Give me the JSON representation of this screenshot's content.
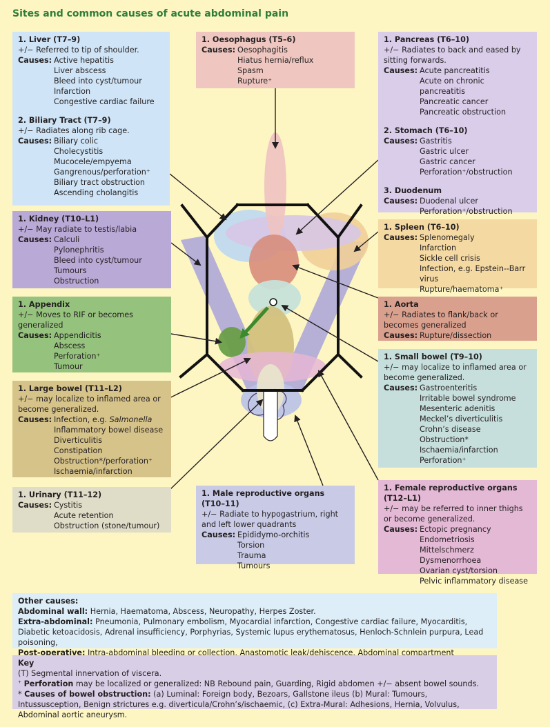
{
  "title": "Sites and common causes of acute abdominal pain",
  "causes_label": "Causes:",
  "liver": {
    "heading": "1. Liver (T7–9)",
    "note": "+/− Referred to tip of shoulder.",
    "causes": [
      "Active hepatitis",
      "Liver abscess",
      "Bleed into cyst/tumour",
      "Infarction",
      "Congestive cardiac failure"
    ]
  },
  "biliary": {
    "heading": "2. Biliary Tract (T7–9)",
    "note": "+/− Radiates along rib cage.",
    "causes": [
      "Biliary colic",
      "Cholecystitis",
      "Mucocele/empyema",
      "Gangrenous/perforation⁺",
      "Biliary tract obstruction",
      "Ascending cholangitis"
    ]
  },
  "oesophagus": {
    "heading": "1. Oesophagus (T5–6)",
    "causes": [
      "Oesophagitis",
      "Hiatus hernia/reflux",
      "Spasm",
      "Rupture⁺"
    ]
  },
  "pancreas": {
    "heading": "1. Pancreas (T6–10)",
    "note": "+/− Radiates to back and eased by sitting forwards.",
    "causes": [
      "Acute pancreatitis",
      "Acute on chronic pancreatitis",
      "Pancreatic cancer",
      "Pancreatic obstruction"
    ]
  },
  "stomach": {
    "heading": "2. Stomach (T6–10)",
    "causes": [
      "Gastritis",
      "Gastric ulcer",
      "Gastric cancer",
      "Perforation⁺/obstruction"
    ]
  },
  "duodenum": {
    "heading": "3. Duodenum",
    "causes": [
      "Duodenal ulcer",
      "Perforation⁺/obstruction"
    ]
  },
  "kidney": {
    "heading": "1. Kidney (T10–L1)",
    "note": "+/− May radiate to testis/labia",
    "causes": [
      "Calculi",
      "Pylonephritis",
      "Bleed into cyst/tumour",
      "Tumours",
      "Obstruction"
    ]
  },
  "spleen": {
    "heading": "1. Spleen (T6–10)",
    "causes": [
      "Splenomegaly",
      "Infarction",
      "Sickle cell crisis",
      "Infection, e.g. Epstein--Barr virus",
      "Rupture/haematoma⁺"
    ]
  },
  "appendix": {
    "heading": "1. Appendix",
    "note": "+/− Moves to RIF or becomes generalized",
    "causes": [
      "Appendicitis",
      "Abscess",
      "Perforation⁺",
      "Tumour"
    ]
  },
  "aorta": {
    "heading": "1. Aorta",
    "note": "+/− Radiates to flank/back or becomes generalized",
    "causes": [
      "Rupture/dissection"
    ]
  },
  "large_bowel": {
    "heading": "1. Large bowel (T11–L2)",
    "note": "+/− may localize to inflamed area or become generalized.",
    "causes_first_prefix": "Infection, e.g. ",
    "causes_first_italic": "Salmonella",
    "causes": [
      "Inflammatory bowel disease",
      "Diverticulitis",
      "Constipation",
      "Obstruction*/perforation⁺",
      "Ischaemia/infarction"
    ]
  },
  "small_bowel": {
    "heading": "1. Small bowel (T9–10)",
    "note": "+/− may localize to inflamed area or become generalized.",
    "causes": [
      "Gastroenteritis",
      "Irritable bowel syndrome",
      "Mesenteric adenitis",
      "Meckel’s diverticulitis",
      "Crohn’s disease",
      "Obstruction*",
      "Ischaemia/infarction",
      "Perforation⁺"
    ]
  },
  "urinary": {
    "heading": "1. Urinary (T11–12)",
    "causes": [
      "Cystitis",
      "Acute retention",
      "Obstruction (stone/tumour)"
    ]
  },
  "male": {
    "heading": "1. Male reproductive organs (T10–11)",
    "note": "+/− Radiate to hypogastrium, right and left lower quadrants",
    "causes": [
      "Epididymo-orchitis",
      "Torsion",
      "Trauma",
      "Tumours"
    ]
  },
  "female": {
    "heading": "1. Female reproductive organs (T12–L1)",
    "note": "+/− may be referred to inner thighs or become generalized.",
    "causes": [
      "Ectopic pregnancy",
      "Endometriosis",
      "Mittelschmerz",
      "Dysmenorrhoea",
      "Ovarian cyst/torsion",
      "Pelvic inflammatory disease"
    ]
  },
  "other": {
    "heading": "Other causes:",
    "abdominal_wall_label": "Abdominal wall:",
    "abdominal_wall": "Hernia, Haematoma, Abscess, Neuropathy, Herpes Zoster.",
    "extra_label": "Extra-abdominal:",
    "extra": "Pneumonia, Pulmonary embolism, Myocardial infarction, Congestive cardiac failure, Myocarditis, Diabetic ketoacidosis, Adrenal insufficiency, Porphyrias, Systemic lupus erythematosus, Henloch-Schnlein purpura, Lead poisoning,",
    "post_label": "Post-operative:",
    "post": "Intra-abdominal bleeding or collection, Anastomotic leak/dehiscence, Abdominal compartment syndrome."
  },
  "key": {
    "heading": "Key",
    "line1": "(T) Segmental innervation of viscera.",
    "perf_label": "Perforation",
    "perf_text": "may be localized or generalized: NB Rebound pain, Guarding, Rigid abdomen +/− absent bowel sounds.",
    "obs_label": "Causes of bowel obstruction:",
    "obs_text": "(a) Luminal: Foreign body, Bezoars, Gallstone ileus (b) Mural: Tumours, Intussusception, Benign strictures e.g. diverticula/Crohn’s/ischaemic, (c) Extra-Mural: Adhesions, Hernia, Volvulus, Abdominal aortic aneurysm."
  },
  "colors": {
    "title": "#2e7d3a",
    "background": "#fdf6c3",
    "arrow_green": "#3b8a2e"
  }
}
